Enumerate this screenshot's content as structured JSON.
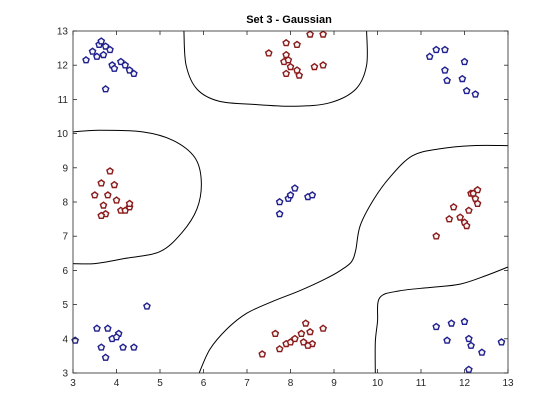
{
  "chart_data": {
    "type": "scatter",
    "title": "Set 3 - Gaussian",
    "xlabel": "",
    "ylabel": "",
    "xlim": [
      3,
      13
    ],
    "ylim": [
      3,
      13
    ],
    "xticks": [
      3,
      4,
      5,
      6,
      7,
      8,
      9,
      10,
      11,
      12,
      13
    ],
    "yticks": [
      3,
      4,
      5,
      6,
      7,
      8,
      9,
      10,
      11,
      12,
      13
    ],
    "grid": false,
    "colors": {
      "blue_marker": "#1f1f8f",
      "red_marker": "#8b1a1a",
      "marker_fill": "#f5f5f5",
      "boundary": "#000000"
    },
    "series": [
      {
        "marker_color": "#1f1f8f",
        "points": [
          [
            3.3,
            12.15
          ],
          [
            3.45,
            12.4
          ],
          [
            3.6,
            12.6
          ],
          [
            3.65,
            12.7
          ],
          [
            3.75,
            12.55
          ],
          [
            3.7,
            12.3
          ],
          [
            3.85,
            12.45
          ],
          [
            3.55,
            12.25
          ],
          [
            3.9,
            12.0
          ],
          [
            3.95,
            11.9
          ],
          [
            4.1,
            12.1
          ],
          [
            4.2,
            12.0
          ],
          [
            4.3,
            11.85
          ],
          [
            4.4,
            11.75
          ],
          [
            3.75,
            11.3
          ],
          [
            11.2,
            12.25
          ],
          [
            11.35,
            12.45
          ],
          [
            11.55,
            12.45
          ],
          [
            11.55,
            11.85
          ],
          [
            11.6,
            11.55
          ],
          [
            12.0,
            12.1
          ],
          [
            11.95,
            11.6
          ],
          [
            12.05,
            11.25
          ],
          [
            12.25,
            11.15
          ],
          [
            7.75,
            8.0
          ],
          [
            7.95,
            8.1
          ],
          [
            8.1,
            8.4
          ],
          [
            8.0,
            8.2
          ],
          [
            8.4,
            8.15
          ],
          [
            8.5,
            8.2
          ],
          [
            7.75,
            7.65
          ],
          [
            3.05,
            3.95
          ],
          [
            3.55,
            4.3
          ],
          [
            3.8,
            4.3
          ],
          [
            3.65,
            3.75
          ],
          [
            3.9,
            4.0
          ],
          [
            4.05,
            4.15
          ],
          [
            4.0,
            4.05
          ],
          [
            4.15,
            3.75
          ],
          [
            3.75,
            3.45
          ],
          [
            4.4,
            3.75
          ],
          [
            4.7,
            4.95
          ],
          [
            11.35,
            4.35
          ],
          [
            11.6,
            3.95
          ],
          [
            11.7,
            4.45
          ],
          [
            12.0,
            4.5
          ],
          [
            12.1,
            4.0
          ],
          [
            12.15,
            3.8
          ],
          [
            12.4,
            3.6
          ],
          [
            12.85,
            3.9
          ],
          [
            12.1,
            3.1
          ]
        ]
      },
      {
        "marker_color": "#8b1a1a",
        "points": [
          [
            7.5,
            12.35
          ],
          [
            7.9,
            12.65
          ],
          [
            8.15,
            12.6
          ],
          [
            8.45,
            12.9
          ],
          [
            8.75,
            12.9
          ],
          [
            7.9,
            12.3
          ],
          [
            7.85,
            12.1
          ],
          [
            8.0,
            11.95
          ],
          [
            7.9,
            11.75
          ],
          [
            8.15,
            11.85
          ],
          [
            8.2,
            11.7
          ],
          [
            8.55,
            11.95
          ],
          [
            8.75,
            12.0
          ],
          [
            7.95,
            12.15
          ],
          [
            3.5,
            8.2
          ],
          [
            3.65,
            8.55
          ],
          [
            3.85,
            8.9
          ],
          [
            3.95,
            8.5
          ],
          [
            3.8,
            8.2
          ],
          [
            4.0,
            8.05
          ],
          [
            3.7,
            7.9
          ],
          [
            3.75,
            7.65
          ],
          [
            4.1,
            7.75
          ],
          [
            4.2,
            7.75
          ],
          [
            4.3,
            7.85
          ],
          [
            4.3,
            7.95
          ],
          [
            3.65,
            7.6
          ],
          [
            11.35,
            7.0
          ],
          [
            11.65,
            7.5
          ],
          [
            11.75,
            7.85
          ],
          [
            11.9,
            7.55
          ],
          [
            12.0,
            7.4
          ],
          [
            12.05,
            7.3
          ],
          [
            12.1,
            7.75
          ],
          [
            12.15,
            8.25
          ],
          [
            12.25,
            8.1
          ],
          [
            12.3,
            8.35
          ],
          [
            12.2,
            8.25
          ],
          [
            12.3,
            7.95
          ],
          [
            7.35,
            3.55
          ],
          [
            7.65,
            4.15
          ],
          [
            7.75,
            3.7
          ],
          [
            7.9,
            3.85
          ],
          [
            8.0,
            3.9
          ],
          [
            8.1,
            4.0
          ],
          [
            8.25,
            4.15
          ],
          [
            8.3,
            3.9
          ],
          [
            8.35,
            4.45
          ],
          [
            8.45,
            4.2
          ],
          [
            8.5,
            3.85
          ],
          [
            8.75,
            4.3
          ],
          [
            8.4,
            3.8
          ]
        ]
      }
    ],
    "decision_boundary_curves": [
      [
        [
          5.55,
          13.0
        ],
        [
          5.6,
          12.0
        ],
        [
          5.85,
          11.3
        ],
        [
          6.35,
          10.95
        ],
        [
          7.2,
          10.85
        ],
        [
          8.1,
          10.8
        ],
        [
          8.9,
          10.9
        ],
        [
          9.5,
          11.3
        ],
        [
          9.75,
          12.0
        ],
        [
          9.75,
          13.0
        ]
      ],
      [
        [
          3.0,
          10.05
        ],
        [
          3.6,
          10.1
        ],
        [
          4.6,
          10.05
        ],
        [
          5.3,
          9.8
        ],
        [
          5.8,
          9.3
        ],
        [
          5.95,
          8.6
        ],
        [
          5.85,
          7.8
        ],
        [
          5.5,
          7.1
        ],
        [
          5.0,
          6.55
        ],
        [
          4.2,
          6.35
        ],
        [
          3.5,
          6.2
        ],
        [
          3.0,
          6.2
        ]
      ],
      [
        [
          5.9,
          3.0
        ],
        [
          6.15,
          3.7
        ],
        [
          6.55,
          4.3
        ],
        [
          7.0,
          4.75
        ],
        [
          7.6,
          5.1
        ],
        [
          8.2,
          5.4
        ],
        [
          8.8,
          5.75
        ],
        [
          9.15,
          6.0
        ],
        [
          9.4,
          6.25
        ],
        [
          9.5,
          6.6
        ],
        [
          9.6,
          7.3
        ],
        [
          9.9,
          8.05
        ],
        [
          10.3,
          8.75
        ],
        [
          10.8,
          9.35
        ],
        [
          11.4,
          9.55
        ],
        [
          12.2,
          9.65
        ],
        [
          13.0,
          9.65
        ]
      ],
      [
        [
          9.95,
          3.0
        ],
        [
          9.95,
          3.9
        ],
        [
          10.0,
          4.5
        ],
        [
          10.05,
          5.2
        ],
        [
          10.5,
          5.4
        ],
        [
          11.2,
          5.5
        ],
        [
          11.9,
          5.6
        ],
        [
          12.5,
          5.85
        ],
        [
          13.0,
          6.1
        ]
      ]
    ]
  }
}
